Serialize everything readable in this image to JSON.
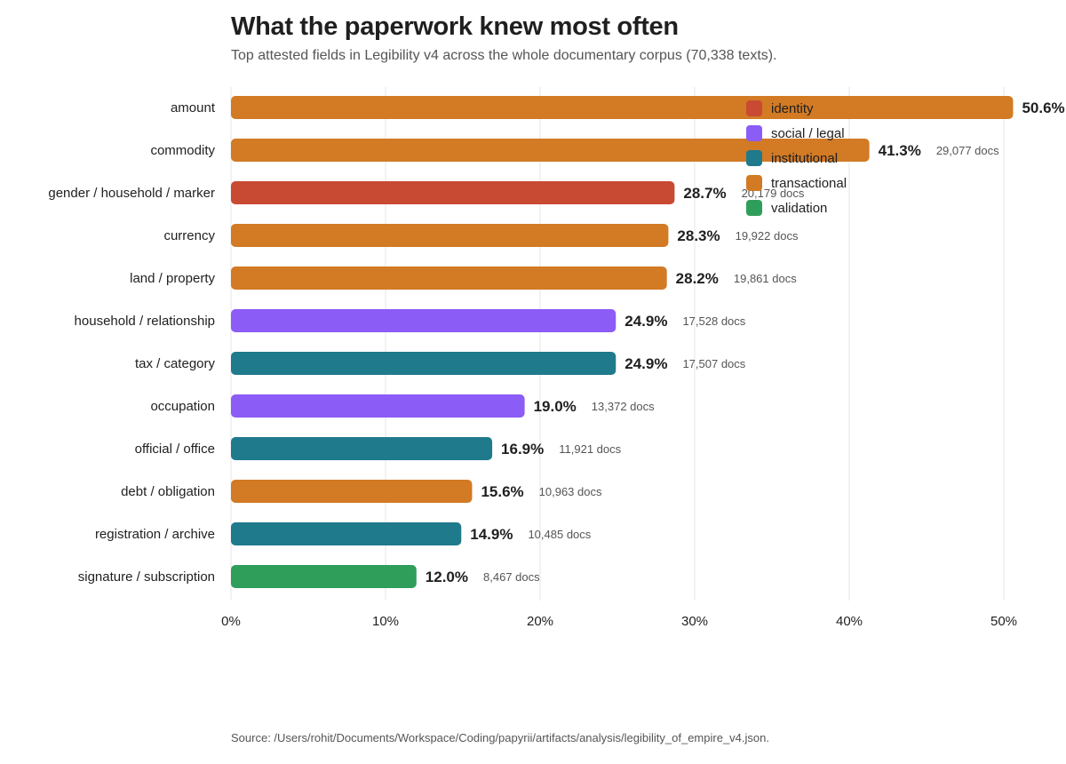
{
  "header": {
    "title": "What the paperwork knew most often",
    "subtitle": "Top attested fields in Legibility v4 across the whole documentary corpus (70,338 texts)."
  },
  "footer": {
    "source": "Source: /Users/rohit/Documents/Workspace/Coding/papyrii/artifacts/analysis/legibility_of_empire_v4.json."
  },
  "legend": {
    "items": [
      {
        "label": "identity",
        "color": "#c94a32"
      },
      {
        "label": "social / legal",
        "color": "#8b5cf6"
      },
      {
        "label": "institutional",
        "color": "#1f7a8c"
      },
      {
        "label": "transactional",
        "color": "#d27a24"
      },
      {
        "label": "validation",
        "color": "#2f9e5b"
      }
    ]
  },
  "chart_data": {
    "type": "bar",
    "orientation": "horizontal",
    "title": "What the paperwork knew most often",
    "subtitle": "Top attested fields in Legibility v4 across the whole documentary corpus (70,338 texts).",
    "xlim": [
      0,
      50
    ],
    "xticks": [
      "0%",
      "10%",
      "20%",
      "30%",
      "40%",
      "50%"
    ],
    "grid": true,
    "legend_position": "top-right",
    "categories": [
      "amount",
      "commodity",
      "gender / household / marker",
      "currency",
      "land / property",
      "household / relationship",
      "tax / category",
      "occupation",
      "official / office",
      "debt / obligation",
      "registration / archive",
      "signature / subscription"
    ],
    "values": [
      50.6,
      41.3,
      28.7,
      28.3,
      28.2,
      24.9,
      24.9,
      19.0,
      16.9,
      15.6,
      14.9,
      12.0
    ],
    "value_labels": [
      "50.6%",
      "41.3%",
      "28.7%",
      "28.3%",
      "28.2%",
      "24.9%",
      "24.9%",
      "19.0%",
      "16.9%",
      "15.6%",
      "14.9%",
      "12.0%"
    ],
    "doc_labels": [
      "",
      "29,077 docs",
      "20,179 docs",
      "19,922 docs",
      "19,861 docs",
      "17,528 docs",
      "17,507 docs",
      "13,372 docs",
      "11,921 docs",
      "10,963 docs",
      "10,485 docs",
      "8,467 docs"
    ],
    "groups": [
      "transactional",
      "transactional",
      "identity",
      "transactional",
      "transactional",
      "social / legal",
      "institutional",
      "social / legal",
      "institutional",
      "transactional",
      "institutional",
      "validation"
    ]
  }
}
